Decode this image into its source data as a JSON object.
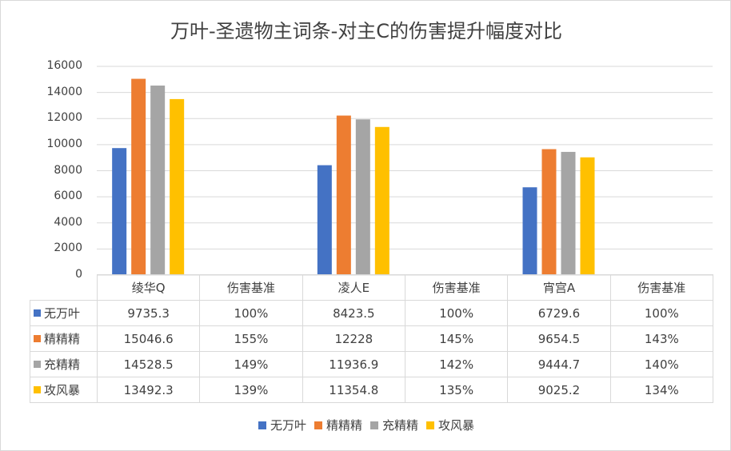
{
  "chart_data": {
    "type": "bar",
    "title": "万叶-圣遗物主词条-对主C的伤害提升幅度对比",
    "categories": [
      "绫华Q",
      "伤害基准",
      "凌人E",
      "伤害基准",
      "宵宫A",
      "伤害基准"
    ],
    "series": [
      {
        "name": "无万叶",
        "color": "#4472C4",
        "values": [
          9735.3,
          null,
          8423.5,
          null,
          6729.6,
          null
        ],
        "labels": [
          "9735.3",
          "100%",
          "8423.5",
          "100%",
          "6729.6",
          "100%"
        ]
      },
      {
        "name": "精精精",
        "color": "#ED7D31",
        "values": [
          15046.6,
          null,
          12228,
          null,
          9654.5,
          null
        ],
        "labels": [
          "15046.6",
          "155%",
          "12228",
          "145%",
          "9654.5",
          "143%"
        ]
      },
      {
        "name": "充精精",
        "color": "#A5A5A5",
        "values": [
          14528.5,
          null,
          11936.9,
          null,
          9444.7,
          null
        ],
        "labels": [
          "14528.5",
          "149%",
          "11936.9",
          "142%",
          "9444.7",
          "140%"
        ]
      },
      {
        "name": "攻风暴",
        "color": "#FFC000",
        "values": [
          13492.3,
          null,
          11354.8,
          null,
          9025.2,
          null
        ],
        "labels": [
          "13492.3",
          "139%",
          "11354.8",
          "135%",
          "9025.2",
          "134%"
        ]
      }
    ],
    "yticks": [
      "0",
      "2000",
      "4000",
      "6000",
      "8000",
      "10000",
      "12000",
      "14000",
      "16000"
    ],
    "ylim": [
      0,
      16000
    ],
    "grid": true,
    "legend": "bottom",
    "xlabel": "",
    "ylabel": ""
  }
}
